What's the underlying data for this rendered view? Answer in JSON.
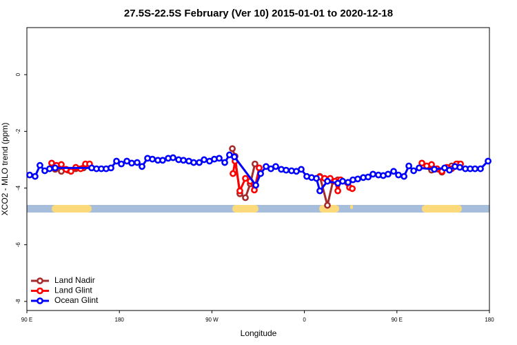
{
  "chart_data": {
    "type": "line",
    "title": "27.5S-22.5S February (Ver 10)   2015-01-01 to 2020-12-18",
    "x_label": "Longitude",
    "y_label": "XCO2 - MLO trend (ppm)",
    "xlim": [
      90,
      540
    ],
    "xticks": [
      {
        "value": 90,
        "label": "90 E"
      },
      {
        "value": 180,
        "label": "180"
      },
      {
        "value": 270,
        "label": "90 W"
      },
      {
        "value": 360,
        "label": "0"
      },
      {
        "value": 450,
        "label": "90 E"
      },
      {
        "value": 540,
        "label": "180"
      }
    ],
    "ylim": [
      -8.32,
      1.66
    ],
    "yticks": [
      0,
      -2,
      -4,
      -6,
      -8
    ],
    "legend": "bottom-left",
    "series": [
      {
        "name": "Land Nadir",
        "color": "#a52a2a",
        "x": [
          117.5,
          123.5,
          130,
          137.6,
          145,
          null,
          289.9,
          292.5,
          297.2,
          302.6,
          307.3,
          311.9,
          null,
          375,
          382.4,
          387.8,
          392.5,
          null,
          483.7,
          493.8,
          503.2,
          509.2
        ],
        "values": [
          -3.34,
          -3.41,
          -3.37,
          -3.32,
          -3.29,
          null,
          -2.61,
          -2.88,
          -4.2,
          -4.34,
          -3.85,
          -3.15,
          null,
          -3.59,
          -4.61,
          -3.76,
          -3.71,
          null,
          -3.37,
          -3.44,
          -3.22,
          -3.15
        ]
      },
      {
        "name": "Land Glint",
        "color": "#ff0000",
        "x": [
          114.1,
          118.8,
          123.5,
          128.2,
          132.9,
          137.6,
          142.3,
          147,
          151,
          null,
          290.5,
          292.5,
          297.2,
          302.6,
          307.3,
          311.3,
          316,
          null,
          375,
          379.7,
          385.1,
          389.8,
          392.5,
          395.2,
          403.9,
          406.6,
          null,
          474.3,
          479,
          483.7,
          489,
          493.8,
          498.5,
          503.2,
          507.9,
          511.9
        ],
        "values": [
          -3.12,
          -3.2,
          -3.17,
          -3.34,
          -3.41,
          -3.27,
          -3.32,
          -3.15,
          -3.15,
          null,
          -3.49,
          -3.05,
          -4.1,
          -3.66,
          -3.76,
          -4.07,
          -3.29,
          null,
          -3.61,
          -3.66,
          -3.66,
          -3.76,
          -4.1,
          -3.71,
          -3.98,
          -4.02,
          null,
          -3.12,
          -3.22,
          -3.17,
          -3.32,
          -3.41,
          -3.27,
          -3.32,
          -3.15,
          -3.15
        ]
      },
      {
        "name": "Ocean Glint",
        "color": "#0000ff",
        "x": [
          92.7,
          98,
          102.7,
          107.4,
          112.1,
          117.5,
          153,
          157.7,
          162.4,
          167.1,
          171.8,
          177.2,
          181.9,
          187.3,
          192,
          197.3,
          202,
          207.4,
          212.1,
          217.4,
          222.1,
          227.5,
          232.2,
          237.6,
          242.3,
          247.6,
          252.3,
          257.7,
          262.4,
          267.7,
          272.4,
          277.1,
          282.5,
          287.1,
          291.9,
          312.7,
          317.4,
          322.7,
          327.4,
          332.1,
          337.5,
          342.2,
          347.5,
          352.2,
          356.9,
          362.3,
          367,
          371.7,
          375,
          382.4,
          392.5,
          397.2,
          402.5,
          407.2,
          411.9,
          417.3,
          422,
          426.7,
          432,
          436.7,
          441.4,
          446.8,
          451.5,
          456.9,
          461.6,
          466.3,
          471.6,
          486.4,
          496.4,
          501.1,
          506.5,
          511.2,
          516.6,
          521.3,
          526,
          531.3,
          538.7
        ],
        "values": [
          -3.54,
          -3.59,
          -3.2,
          -3.39,
          -3.32,
          -3.29,
          -3.29,
          -3.32,
          -3.32,
          -3.32,
          -3.29,
          -3.05,
          -3.15,
          -3.05,
          -3.12,
          -3.1,
          -3.24,
          -2.95,
          -2.98,
          -3.02,
          -3.02,
          -2.95,
          -2.93,
          -3.0,
          -3.02,
          -3.05,
          -3.1,
          -3.1,
          -3.0,
          -3.05,
          -2.98,
          -2.95,
          -3.1,
          -2.83,
          -2.9,
          -3.9,
          -3.49,
          -3.24,
          -3.32,
          -3.24,
          -3.34,
          -3.37,
          -3.39,
          -3.41,
          -3.34,
          -3.59,
          -3.63,
          -3.66,
          -4.1,
          -3.76,
          -3.83,
          -3.76,
          -3.8,
          -3.71,
          -3.68,
          -3.63,
          -3.61,
          -3.51,
          -3.54,
          -3.56,
          -3.51,
          -3.41,
          -3.54,
          -3.59,
          -3.22,
          -3.39,
          -3.29,
          -3.34,
          -3.29,
          -3.37,
          -3.24,
          -3.27,
          -3.32,
          -3.32,
          -3.32,
          -3.32,
          -3.05
        ]
      }
    ]
  }
}
